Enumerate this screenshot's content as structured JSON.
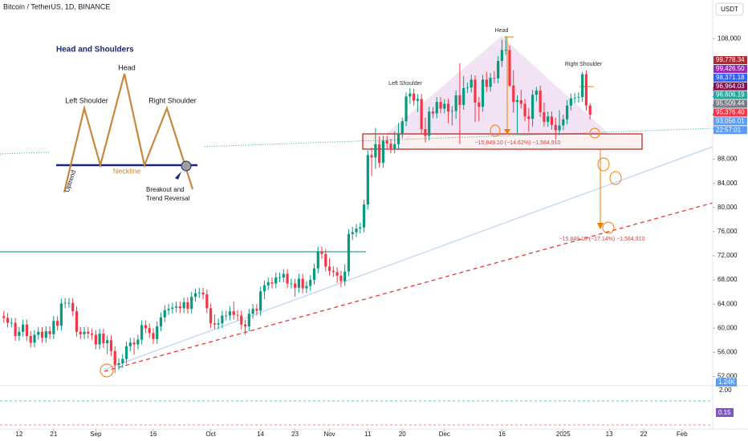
{
  "chart_data": {
    "type": "candlestick",
    "title": "Bitcoin / TetherUS, 1D, BINANCE",
    "currency": "USDT",
    "up_color": "#089981",
    "down_color": "#f23645",
    "grid": false,
    "xlim": [
      "2024-08-07",
      "2025-02-09"
    ],
    "ylim": [
      50600,
      114400
    ],
    "yticks": [
      {
        "value": 108000,
        "label": "108,000"
      },
      {
        "value": 88000,
        "label": "88,000"
      },
      {
        "value": 84000,
        "label": "84,000"
      },
      {
        "value": 80000,
        "label": "80,000"
      },
      {
        "value": 76000,
        "label": "76,000"
      },
      {
        "value": 72000,
        "label": "72,000"
      },
      {
        "value": 68000,
        "label": "68,000"
      },
      {
        "value": 64000,
        "label": "64,000"
      },
      {
        "value": 60000,
        "label": "60,000"
      },
      {
        "value": 56000,
        "label": "56,000"
      },
      {
        "value": 52000,
        "label": "52,000"
      }
    ],
    "xticks": [
      {
        "value": "2024-08-12",
        "label": "12"
      },
      {
        "value": "2024-08-21",
        "label": "21"
      },
      {
        "value": "2024-09-01",
        "label": "Sep"
      },
      {
        "value": "2024-09-16",
        "label": "16"
      },
      {
        "value": "2024-10-01",
        "label": "Oct"
      },
      {
        "value": "2024-10-14",
        "label": "14"
      },
      {
        "value": "2024-10-23",
        "label": "23"
      },
      {
        "value": "2024-11-01",
        "label": "Nov"
      },
      {
        "value": "2024-11-11",
        "label": "11"
      },
      {
        "value": "2024-11-20",
        "label": "20"
      },
      {
        "value": "2024-12-01",
        "label": "Dec"
      },
      {
        "value": "2024-12-16",
        "label": "16"
      },
      {
        "value": "2025-01-01",
        "label": "2025"
      },
      {
        "value": "2025-01-13",
        "label": "13"
      },
      {
        "value": "2025-01-22",
        "label": "22"
      },
      {
        "value": "2025-02-01",
        "label": "Feb"
      }
    ],
    "x": [
      "2024-08-08",
      "2024-08-09",
      "2024-08-10",
      "2024-08-11",
      "2024-08-12",
      "2024-08-13",
      "2024-08-14",
      "2024-08-15",
      "2024-08-16",
      "2024-08-17",
      "2024-08-18",
      "2024-08-19",
      "2024-08-20",
      "2024-08-21",
      "2024-08-22",
      "2024-08-23",
      "2024-08-24",
      "2024-08-25",
      "2024-08-26",
      "2024-08-27",
      "2024-08-28",
      "2024-08-29",
      "2024-08-30",
      "2024-08-31",
      "2024-09-01",
      "2024-09-02",
      "2024-09-03",
      "2024-09-04",
      "2024-09-05",
      "2024-09-06",
      "2024-09-07",
      "2024-09-08",
      "2024-09-09",
      "2024-09-10",
      "2024-09-11",
      "2024-09-12",
      "2024-09-13",
      "2024-09-14",
      "2024-09-15",
      "2024-09-16",
      "2024-09-17",
      "2024-09-18",
      "2024-09-19",
      "2024-09-20",
      "2024-09-21",
      "2024-09-22",
      "2024-09-23",
      "2024-09-24",
      "2024-09-25",
      "2024-09-26",
      "2024-09-27",
      "2024-09-28",
      "2024-09-29",
      "2024-09-30",
      "2024-10-01",
      "2024-10-02",
      "2024-10-03",
      "2024-10-04",
      "2024-10-05",
      "2024-10-06",
      "2024-10-07",
      "2024-10-08",
      "2024-10-09",
      "2024-10-10",
      "2024-10-11",
      "2024-10-12",
      "2024-10-13",
      "2024-10-14",
      "2024-10-15",
      "2024-10-16",
      "2024-10-17",
      "2024-10-18",
      "2024-10-19",
      "2024-10-20",
      "2024-10-21",
      "2024-10-22",
      "2024-10-23",
      "2024-10-24",
      "2024-10-25",
      "2024-10-26",
      "2024-10-27",
      "2024-10-28",
      "2024-10-29",
      "2024-10-30",
      "2024-10-31",
      "2024-11-01",
      "2024-11-02",
      "2024-11-03",
      "2024-11-04",
      "2024-11-05",
      "2024-11-06",
      "2024-11-07",
      "2024-11-08",
      "2024-11-09",
      "2024-11-10",
      "2024-11-11",
      "2024-11-12",
      "2024-11-13",
      "2024-11-14",
      "2024-11-15",
      "2024-11-16",
      "2024-11-17",
      "2024-11-18",
      "2024-11-19",
      "2024-11-20",
      "2024-11-21",
      "2024-11-22",
      "2024-11-23",
      "2024-11-24",
      "2024-11-25",
      "2024-11-26",
      "2024-11-27",
      "2024-11-28",
      "2024-11-29",
      "2024-11-30",
      "2024-12-01",
      "2024-12-02",
      "2024-12-03",
      "2024-12-04",
      "2024-12-05",
      "2024-12-06",
      "2024-12-07",
      "2024-12-08",
      "2024-12-09",
      "2024-12-10",
      "2024-12-11",
      "2024-12-12",
      "2024-12-13",
      "2024-12-14",
      "2024-12-15",
      "2024-12-16",
      "2024-12-17",
      "2024-12-18",
      "2024-12-19",
      "2024-12-20",
      "2024-12-21",
      "2024-12-22",
      "2024-12-23",
      "2024-12-24",
      "2024-12-25",
      "2024-12-26",
      "2024-12-27",
      "2024-12-28",
      "2024-12-29",
      "2024-12-30",
      "2024-12-31",
      "2025-01-01",
      "2025-01-02",
      "2025-01-03",
      "2025-01-04",
      "2025-01-05",
      "2025-01-06",
      "2025-01-07",
      "2025-01-08"
    ],
    "open": [
      62000,
      61700,
      60900,
      60900,
      58700,
      59400,
      60600,
      58700,
      57600,
      58900,
      59400,
      58400,
      59500,
      59000,
      61200,
      60400,
      64100,
      64200,
      64200,
      62800,
      59400,
      59000,
      59400,
      59100,
      58900,
      57300,
      59100,
      57500,
      58000,
      56200,
      53900,
      54200,
      54900,
      57000,
      57600,
      57300,
      58100,
      60500,
      60000,
      59200,
      58200,
      60300,
      61800,
      63000,
      63200,
      63400,
      63600,
      63300,
      64300,
      63200,
      65200,
      65800,
      65900,
      65600,
      63300,
      60800,
      60600,
      60800,
      62100,
      62100,
      62800,
      62200,
      62100,
      60600,
      60300,
      62400,
      63200,
      62900,
      66100,
      67100,
      67600,
      67400,
      68400,
      68400,
      69000,
      67400,
      67400,
      66700,
      68200,
      66600,
      67000,
      68000,
      69900,
      72700,
      72300,
      70200,
      69500,
      69300,
      68700,
      67800,
      69400,
      75600,
      75900,
      76500,
      76700,
      80500,
      88700,
      88300,
      90500,
      87400,
      91100,
      90600,
      89800,
      90500,
      92300,
      94300,
      98400,
      98900,
      97700,
      98000,
      93000,
      91900,
      95900,
      95600,
      97500,
      96400,
      97200,
      95900,
      96000,
      98600,
      97000,
      99800,
      99900,
      101200,
      97400,
      96700,
      101200,
      100000,
      101500,
      101400,
      104300,
      106100,
      106100,
      100200,
      97500,
      97800,
      97200,
      95100,
      94700,
      98700,
      99400,
      95800,
      94200,
      95100,
      93700,
      92800,
      93600,
      94600,
      96900,
      98100,
      98200,
      98300,
      102100,
      96900
    ],
    "high": [
      62800,
      62500,
      61700,
      61700,
      60200,
      61400,
      61400,
      59500,
      59700,
      60200,
      60200,
      60300,
      60300,
      62000,
      62000,
      64900,
      65000,
      65000,
      65000,
      63600,
      60200,
      60200,
      60200,
      59900,
      59700,
      59900,
      59900,
      58800,
      58800,
      57000,
      55000,
      55700,
      57800,
      58400,
      58400,
      58900,
      61300,
      61300,
      60800,
      60000,
      61100,
      62600,
      63800,
      64000,
      64200,
      64400,
      64400,
      65100,
      65100,
      66000,
      66600,
      66700,
      66700,
      66400,
      64100,
      62300,
      61600,
      62900,
      62900,
      63600,
      64400,
      63000,
      62900,
      61400,
      63200,
      64000,
      64000,
      66900,
      67900,
      68400,
      68400,
      69200,
      69200,
      69800,
      69800,
      68200,
      68200,
      69000,
      69000,
      67800,
      68800,
      70700,
      73500,
      73500,
      73100,
      71600,
      70300,
      70100,
      69500,
      70600,
      76400,
      76800,
      77300,
      77500,
      81300,
      89500,
      89900,
      93200,
      91800,
      91900,
      91900,
      91400,
      92600,
      94000,
      94900,
      99100,
      99800,
      99700,
      98800,
      98800,
      94900,
      96700,
      96700,
      98300,
      98300,
      98000,
      98000,
      96800,
      99400,
      103900,
      101800,
      100700,
      102000,
      101900,
      98300,
      102000,
      102500,
      102300,
      102600,
      105100,
      107800,
      108300,
      106900,
      102800,
      98600,
      99500,
      98000,
      96500,
      99500,
      100000,
      100200,
      97400,
      95900,
      95900,
      94900,
      96100,
      95400,
      97800,
      98900,
      99000,
      99100,
      102500,
      102700,
      97300
    ],
    "low": [
      60900,
      60100,
      60100,
      57900,
      57900,
      58600,
      57900,
      56800,
      56800,
      58100,
      57600,
      57600,
      58200,
      58200,
      59600,
      59600,
      63300,
      63400,
      62000,
      58600,
      58200,
      58200,
      58300,
      58100,
      56500,
      56500,
      56700,
      55700,
      55400,
      52600,
      53100,
      53400,
      54100,
      56200,
      55600,
      56500,
      57300,
      59200,
      58400,
      57400,
      57400,
      59500,
      61000,
      62200,
      62400,
      62600,
      62500,
      62500,
      62400,
      62400,
      64400,
      65000,
      64800,
      62500,
      60000,
      59800,
      59800,
      60000,
      61300,
      61300,
      61400,
      61300,
      59800,
      58900,
      59500,
      61600,
      62100,
      62100,
      64800,
      66300,
      66600,
      66600,
      67600,
      67600,
      66600,
      66600,
      65200,
      65900,
      65800,
      65800,
      66200,
      67200,
      69100,
      71500,
      69400,
      68700,
      68500,
      67500,
      66800,
      67000,
      68600,
      74600,
      75100,
      75700,
      75900,
      79700,
      85200,
      86400,
      86600,
      86600,
      89800,
      89000,
      89000,
      89700,
      91500,
      93500,
      97200,
      96900,
      95800,
      92200,
      90800,
      91100,
      94800,
      94800,
      95600,
      95600,
      94000,
      93600,
      94700,
      90500,
      96200,
      99000,
      99100,
      94200,
      94300,
      95900,
      99200,
      99200,
      100600,
      100600,
      103300,
      105300,
      100000,
      95700,
      92200,
      96400,
      94300,
      92500,
      93400,
      97600,
      95000,
      93400,
      93400,
      92900,
      91300,
      92000,
      92800,
      93800,
      96100,
      97300,
      97400,
      97500,
      96100,
      94600
    ],
    "close": [
      61700,
      60900,
      60900,
      58700,
      59400,
      60600,
      58700,
      57600,
      58900,
      59400,
      58400,
      59500,
      59000,
      61200,
      60400,
      64100,
      64200,
      64200,
      62800,
      59400,
      59000,
      59400,
      59100,
      58900,
      57300,
      59100,
      57500,
      58000,
      56200,
      53900,
      54200,
      54900,
      57000,
      57600,
      57300,
      58100,
      60500,
      60000,
      59200,
      58200,
      60300,
      61800,
      63000,
      63200,
      63400,
      63600,
      63300,
      64300,
      63200,
      65200,
      65800,
      65900,
      65600,
      63300,
      60800,
      60600,
      60800,
      62100,
      62100,
      62800,
      62200,
      62100,
      60600,
      60300,
      62400,
      63200,
      62900,
      66100,
      67100,
      67600,
      67400,
      68400,
      68400,
      69000,
      67400,
      67400,
      66700,
      68200,
      66600,
      67000,
      68000,
      69900,
      72700,
      72300,
      70200,
      69500,
      69300,
      68700,
      67800,
      69400,
      75600,
      75900,
      76500,
      76700,
      80500,
      88700,
      88300,
      90500,
      87400,
      91100,
      90600,
      89800,
      90500,
      92300,
      94300,
      98400,
      98900,
      97700,
      98000,
      93000,
      91900,
      95900,
      95600,
      97500,
      96400,
      97200,
      95900,
      96000,
      98600,
      97000,
      99800,
      99900,
      101200,
      97400,
      96700,
      101200,
      100000,
      101500,
      101400,
      104300,
      106100,
      106100,
      100200,
      97500,
      97800,
      97200,
      95100,
      94700,
      98700,
      99400,
      95800,
      94200,
      95100,
      93700,
      92800,
      93600,
      94600,
      96900,
      98100,
      98200,
      98300,
      102100,
      96900,
      95400
    ],
    "price_labels": [
      {
        "value": 99778.34,
        "label": "99,778.34",
        "color": "#b22833"
      },
      {
        "value": 99426.5,
        "label": "99,426.50",
        "color": "#9c27b0"
      },
      {
        "value": 98371.18,
        "label": "98,371.18",
        "color": "#2962ff"
      },
      {
        "value": 96964.03,
        "label": "96,964.03",
        "color": "#880e4f"
      },
      {
        "value": 96606.19,
        "label": "96,606.19",
        "color": "#26a69a"
      },
      {
        "value": 95509.44,
        "label": "95,509.44",
        "color": "#787b86"
      },
      {
        "value": 95376.4,
        "label": "95,376.40",
        "color": "#f23645"
      },
      {
        "value": 93056.01,
        "label": "93,056.01",
        "color": "#5b9cf6"
      }
    ],
    "countdown": "22:57:01",
    "volume_label": "1.24K",
    "oscillator_top": "2.00",
    "oscillator_value": "0.15",
    "annotations": {
      "head": "Head",
      "left_shoulder": "Left Shoulder",
      "right_shoulder": "Right Shoulder",
      "measure_1": "−15,849.10 (−14.62%) −1,584,910",
      "measure_2": "−15,849.10 (−17.14%) −1,584,910"
    },
    "inset": {
      "title": "Head and Shoulders",
      "head": "Head",
      "left_shoulder": "Left Shoulder",
      "right_shoulder": "Right Shoulder",
      "neckline": "Neckline",
      "uptrend": "Uptrend",
      "breakout_1": "Breakout and",
      "breakout_2": "Trend Reversal"
    }
  }
}
